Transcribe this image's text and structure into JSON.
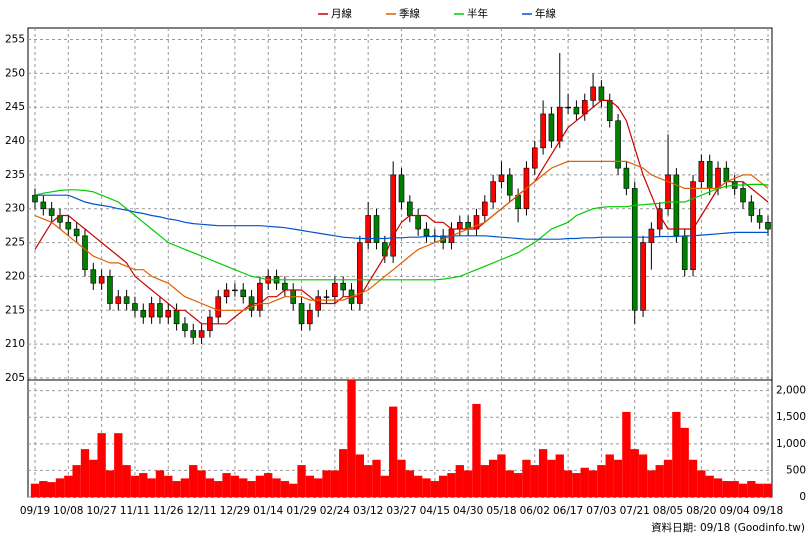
{
  "chart_data": {
    "type": "candlestick",
    "categories": [
      "09/19",
      null,
      null,
      null,
      "10/08",
      null,
      null,
      null,
      "10/27",
      null,
      null,
      null,
      "11/11",
      null,
      null,
      null,
      "11/26",
      null,
      null,
      null,
      "12/11",
      null,
      null,
      null,
      "12/29",
      null,
      null,
      null,
      "01/14",
      null,
      null,
      null,
      "01/29",
      null,
      null,
      null,
      "02/24",
      null,
      null,
      null,
      "03/12",
      null,
      null,
      null,
      "03/27",
      null,
      null,
      null,
      "04/15",
      null,
      null,
      null,
      "04/30",
      null,
      null,
      null,
      "05/18",
      null,
      null,
      null,
      "06/02",
      null,
      null,
      null,
      "06/17",
      null,
      null,
      null,
      "07/03",
      null,
      null,
      null,
      "07/21",
      null,
      null,
      null,
      "08/05",
      null,
      null,
      null,
      "08/20",
      null,
      null,
      null,
      "09/04",
      null,
      null,
      null,
      "09/18"
    ],
    "open": [
      232,
      231,
      230,
      229,
      228,
      227,
      226,
      221,
      219,
      220,
      216,
      217,
      216,
      215,
      214,
      216,
      214,
      215,
      213,
      212,
      211,
      212,
      214,
      217,
      218,
      218,
      217,
      215,
      219,
      220,
      219,
      218,
      216,
      213,
      215,
      217,
      217,
      219,
      218,
      216,
      225,
      229,
      225,
      223,
      235,
      231,
      229,
      227,
      226,
      226,
      225,
      227,
      228,
      227,
      229,
      231,
      234,
      235,
      232,
      230,
      236,
      239,
      244,
      240,
      245,
      245,
      244,
      246,
      248,
      246,
      243,
      236,
      233,
      215,
      225,
      227,
      230,
      235,
      226,
      221,
      234,
      237,
      233,
      236,
      234,
      233,
      231,
      229,
      228
    ],
    "high": [
      233,
      232,
      231,
      230,
      229,
      228,
      227,
      222,
      221,
      221,
      218,
      218,
      217,
      216,
      217,
      217,
      216,
      216,
      214,
      213,
      213,
      215,
      218,
      219,
      219,
      219,
      218,
      220,
      221,
      221,
      220,
      219,
      217,
      216,
      218,
      218,
      220,
      220,
      219,
      226,
      231,
      230,
      226,
      237,
      236,
      232,
      230,
      228,
      227,
      227,
      228,
      229,
      229,
      230,
      232,
      235,
      237,
      236,
      233,
      237,
      240,
      246,
      245,
      253,
      247,
      246,
      247,
      250,
      249,
      247,
      244,
      237,
      234,
      226,
      228,
      231,
      241,
      236,
      227,
      235,
      238,
      238,
      237,
      237,
      235,
      234,
      232,
      230,
      229
    ],
    "low": [
      230,
      229,
      228,
      227,
      226,
      225,
      220,
      218,
      218,
      215,
      215,
      215,
      214,
      213,
      213,
      213,
      213,
      212,
      211,
      210,
      210,
      211,
      213,
      216,
      217,
      216,
      214,
      214,
      218,
      218,
      217,
      215,
      212,
      212,
      214,
      216,
      216,
      217,
      215,
      215,
      224,
      224,
      222,
      222,
      230,
      228,
      226,
      225,
      225,
      224,
      224,
      226,
      226,
      226,
      228,
      230,
      233,
      231,
      228,
      229,
      235,
      238,
      239,
      239,
      244,
      243,
      243,
      245,
      245,
      242,
      235,
      232,
      213,
      214,
      221,
      226,
      229,
      225,
      220,
      220,
      233,
      232,
      232,
      233,
      232,
      230,
      228,
      227,
      226
    ],
    "close": [
      231,
      230,
      229,
      228,
      227,
      226,
      221,
      219,
      220,
      216,
      217,
      216,
      215,
      214,
      216,
      214,
      215,
      213,
      212,
      211,
      212,
      214,
      217,
      218,
      218,
      217,
      215,
      219,
      220,
      219,
      218,
      216,
      213,
      215,
      217,
      217,
      219,
      218,
      216,
      225,
      229,
      225,
      223,
      235,
      231,
      229,
      227,
      226,
      226,
      225,
      227,
      228,
      227,
      229,
      231,
      234,
      235,
      232,
      230,
      236,
      239,
      244,
      240,
      245,
      245,
      244,
      246,
      248,
      246,
      243,
      236,
      233,
      215,
      225,
      227,
      230,
      235,
      226,
      221,
      234,
      237,
      233,
      236,
      234,
      233,
      231,
      229,
      228,
      227
    ],
    "up_color": "#ff0000",
    "down_color": "#008000",
    "series": [
      {
        "name": "月線",
        "color": "#cc0000",
        "values": [
          224,
          226,
          228,
          229,
          229,
          228,
          227,
          226,
          225,
          224,
          223,
          222,
          220,
          219,
          218,
          217,
          216,
          215,
          215,
          214,
          213,
          213,
          213,
          213,
          214,
          215,
          216,
          216,
          217,
          217,
          218,
          218,
          218,
          217,
          216,
          216,
          216,
          217,
          217,
          217,
          219,
          221,
          223,
          226,
          228,
          229,
          229,
          229,
          228,
          228,
          227,
          227,
          227,
          227,
          228,
          229,
          230,
          231,
          232,
          233,
          234,
          236,
          238,
          240,
          242,
          243,
          244,
          245,
          246,
          246,
          245,
          243,
          239,
          235,
          232,
          229,
          227,
          227,
          227,
          227,
          229,
          231,
          233,
          234,
          234,
          234,
          233,
          232,
          231
        ]
      },
      {
        "name": "季線",
        "color": "#e06000",
        "values": [
          229,
          228.5,
          228,
          227,
          226,
          225,
          224,
          223,
          222.5,
          222,
          222,
          221.5,
          221,
          221,
          220,
          219.5,
          219,
          218,
          217,
          216.5,
          216,
          215.5,
          215,
          215,
          215,
          215,
          215.5,
          216,
          216,
          216.5,
          217,
          217,
          217,
          216.5,
          216.5,
          216.5,
          216.5,
          216.5,
          217,
          217.5,
          218,
          219,
          220,
          221,
          222,
          223,
          224,
          224.5,
          225,
          225.5,
          226,
          226.5,
          227,
          227.5,
          228,
          229,
          230,
          231,
          232,
          233,
          234,
          235,
          236,
          236.5,
          237,
          237,
          237,
          237,
          237,
          237,
          237,
          237,
          236.5,
          236,
          235,
          234.5,
          234,
          233.5,
          233,
          233,
          233,
          233,
          233,
          234,
          234.5,
          235,
          235,
          234,
          233
        ]
      },
      {
        "name": "半年",
        "color": "#00cc00",
        "values": [
          232,
          232.3,
          232.5,
          232.7,
          232.8,
          232.8,
          232.7,
          232.5,
          232,
          231.5,
          231,
          230,
          229,
          228,
          227,
          226,
          225,
          224.5,
          224,
          223.5,
          223,
          222.5,
          222,
          221.5,
          221,
          220.5,
          220,
          219.8,
          219.5,
          219.5,
          219.5,
          219.5,
          219.5,
          219.5,
          219.5,
          219.5,
          219.5,
          219.5,
          219.5,
          219.5,
          219.5,
          219.5,
          219.5,
          219.5,
          219.5,
          219.5,
          219.5,
          219.5,
          219.5,
          219.6,
          219.8,
          220,
          220.5,
          221,
          221.5,
          222,
          222.5,
          223,
          223.5,
          224.3,
          225,
          226,
          227,
          227.5,
          228,
          229,
          229.5,
          230,
          230.2,
          230.3,
          230.3,
          230.3,
          230.5,
          230.6,
          230.7,
          230.8,
          231,
          231,
          231,
          231.5,
          232,
          232.5,
          233,
          233.3,
          233.5,
          233.5,
          233.6,
          233.6,
          233.5
        ]
      },
      {
        "name": "年線",
        "color": "#0055cc",
        "values": [
          232,
          232,
          232,
          232,
          232,
          231.5,
          231,
          230.7,
          230.5,
          230.3,
          230,
          229.8,
          229.5,
          229.3,
          229,
          228.8,
          228.5,
          228.3,
          228,
          227.8,
          227.7,
          227.6,
          227.5,
          227.5,
          227.5,
          227.5,
          227.5,
          227.5,
          227.4,
          227.3,
          227.2,
          227,
          226.8,
          226.6,
          226.4,
          226.2,
          226,
          225.8,
          225.7,
          225.6,
          225.6,
          225.6,
          225.6,
          225.7,
          225.7,
          225.8,
          225.8,
          225.9,
          225.9,
          225.9,
          226,
          226,
          226,
          226,
          226,
          225.9,
          225.8,
          225.7,
          225.6,
          225.5,
          225.5,
          225.5,
          225.5,
          225.5,
          225.6,
          225.6,
          225.7,
          225.7,
          225.8,
          225.8,
          225.8,
          225.8,
          225.8,
          225.8,
          225.8,
          225.9,
          225.9,
          225.9,
          226,
          226,
          226.1,
          226.2,
          226.3,
          226.4,
          226.5,
          226.5,
          226.5,
          226.5,
          226.5
        ]
      }
    ],
    "ylim": [
      204.7,
      256.7
    ],
    "yticks": [
      205,
      210,
      215,
      220,
      225,
      230,
      235,
      240,
      245,
      250,
      255
    ],
    "grid": true,
    "volume": {
      "color": "#ff0000",
      "values": [
        250,
        300,
        280,
        350,
        400,
        600,
        900,
        700,
        1200,
        500,
        1200,
        600,
        400,
        450,
        350,
        500,
        400,
        300,
        350,
        600,
        500,
        350,
        300,
        450,
        400,
        350,
        300,
        400,
        450,
        350,
        300,
        250,
        600,
        400,
        350,
        500,
        500,
        900,
        2200,
        800,
        600,
        700,
        400,
        1700,
        700,
        500,
        400,
        350,
        300,
        400,
        450,
        600,
        500,
        1750,
        600,
        700,
        800,
        500,
        450,
        700,
        600,
        900,
        700,
        800,
        500,
        450,
        550,
        500,
        600,
        800,
        700,
        1600,
        900,
        800,
        500,
        600,
        700,
        1600,
        1300,
        700,
        500,
        400,
        350,
        300,
        300,
        250,
        300,
        250,
        250
      ],
      "ylim": [
        0,
        2200
      ],
      "yticks": [
        0,
        500,
        {
          "value": 1000,
          "label": "1,000"
        },
        {
          "value": 1500,
          "label": "1,500"
        },
        {
          "value": 2000,
          "label": "2,000"
        }
      ]
    },
    "footnote": "資料日期: 09/18 (Goodinfo.tw)"
  }
}
